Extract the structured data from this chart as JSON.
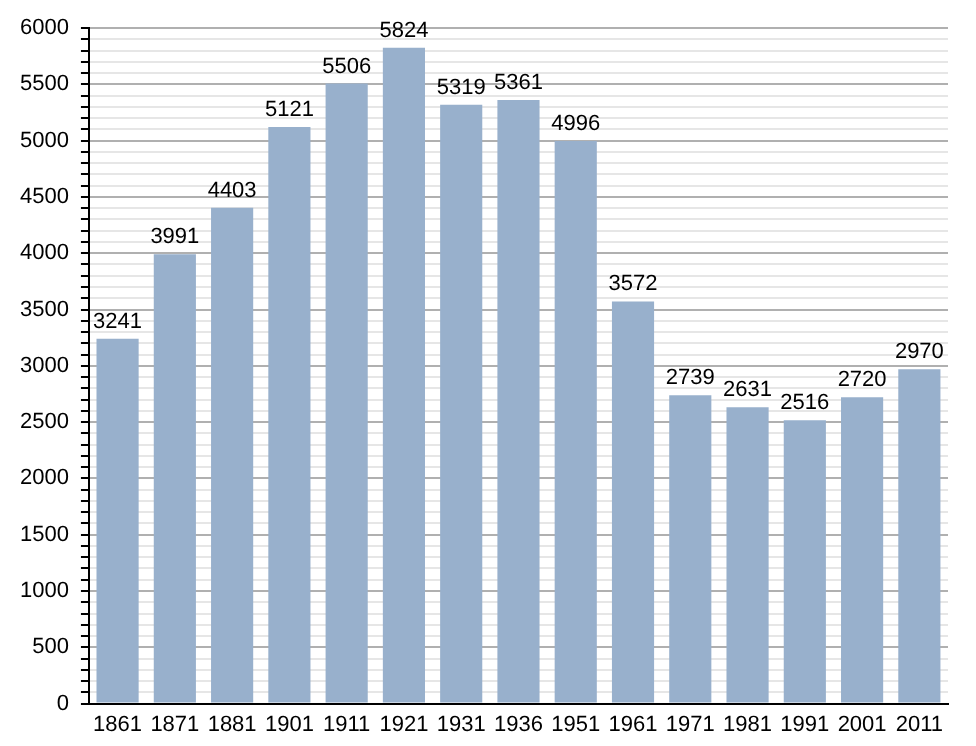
{
  "chart_data": {
    "type": "bar",
    "categories": [
      "1861",
      "1871",
      "1881",
      "1901",
      "1911",
      "1921",
      "1931",
      "1936",
      "1951",
      "1961",
      "1971",
      "1981",
      "1991",
      "2001",
      "2011"
    ],
    "values": [
      3241,
      3991,
      4403,
      5121,
      5506,
      5824,
      5319,
      5361,
      4996,
      3572,
      2739,
      2631,
      2516,
      2720,
      2970
    ],
    "color": "#98b0cc",
    "data_labels": true,
    "grid": "y",
    "legend": false,
    "ylim": [
      0,
      6000
    ],
    "yticks": [
      0,
      {
        "value": 100,
        "label": null
      },
      {
        "value": 200,
        "label": null
      },
      {
        "value": 300,
        "label": null
      },
      {
        "value": 400,
        "label": null
      },
      500,
      {
        "value": 600,
        "label": null
      },
      {
        "value": 700,
        "label": null
      },
      {
        "value": 800,
        "label": null
      },
      {
        "value": 900,
        "label": null
      },
      1000,
      {
        "value": 1100,
        "label": null
      },
      {
        "value": 1200,
        "label": null
      },
      {
        "value": 1300,
        "label": null
      },
      {
        "value": 1400,
        "label": null
      },
      1500,
      {
        "value": 1600,
        "label": null
      },
      {
        "value": 1700,
        "label": null
      },
      {
        "value": 1800,
        "label": null
      },
      {
        "value": 1900,
        "label": null
      },
      2000,
      {
        "value": 2100,
        "label": null
      },
      {
        "value": 2200,
        "label": null
      },
      {
        "value": 2300,
        "label": null
      },
      {
        "value": 2400,
        "label": null
      },
      2500,
      {
        "value": 2600,
        "label": null
      },
      {
        "value": 2700,
        "label": null
      },
      {
        "value": 2800,
        "label": null
      },
      {
        "value": 2900,
        "label": null
      },
      3000,
      {
        "value": 3100,
        "label": null
      },
      {
        "value": 3200,
        "label": null
      },
      {
        "value": 3300,
        "label": null
      },
      {
        "value": 3400,
        "label": null
      },
      3500,
      {
        "value": 3600,
        "label": null
      },
      {
        "value": 3700,
        "label": null
      },
      {
        "value": 3800,
        "label": null
      },
      {
        "value": 3900,
        "label": null
      },
      4000,
      {
        "value": 4100,
        "label": null
      },
      {
        "value": 4200,
        "label": null
      },
      {
        "value": 4300,
        "label": null
      },
      {
        "value": 4400,
        "label": null
      },
      4500,
      {
        "value": 4600,
        "label": null
      },
      {
        "value": 4700,
        "label": null
      },
      {
        "value": 4800,
        "label": null
      },
      {
        "value": 4900,
        "label": null
      },
      5000,
      {
        "value": 5100,
        "label": null
      },
      {
        "value": 5200,
        "label": null
      },
      {
        "value": 5300,
        "label": null
      },
      {
        "value": 5400,
        "label": null
      },
      5500,
      {
        "value": 5600,
        "label": null
      },
      {
        "value": 5700,
        "label": null
      },
      {
        "value": 5800,
        "label": null
      },
      {
        "value": 5900,
        "label": null
      },
      6000
    ]
  }
}
